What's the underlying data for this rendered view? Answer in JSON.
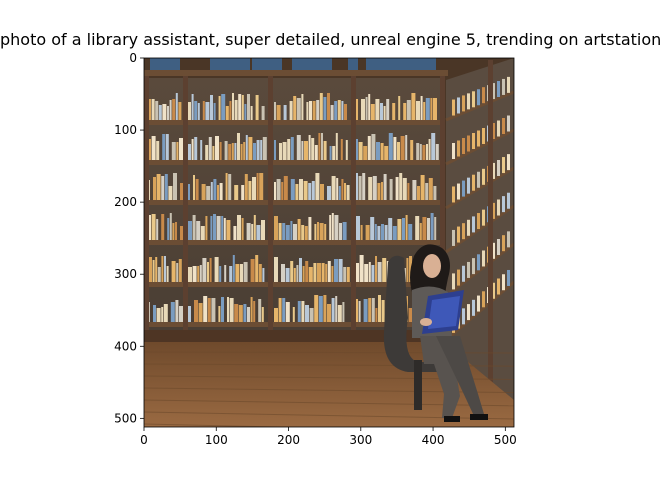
{
  "title": "photo of a library assistant,  super detailed, unreal engine 5, trending on artstation",
  "image": {
    "subject": "library-scene",
    "colors": {
      "wood_dark": "#4a3626",
      "wood_mid": "#6b4d34",
      "floor": "#8a5e3a",
      "shelf_back": "#5d554c",
      "window": "#3f5f82",
      "chair": "#3d3a38",
      "book_blue": "#2d3f8f"
    }
  },
  "axes": {
    "x_ticks": [
      "0",
      "100",
      "200",
      "300",
      "400",
      "500"
    ],
    "y_ticks": [
      "0",
      "100",
      "200",
      "300",
      "400",
      "500"
    ]
  },
  "chart_data": {
    "type": "image",
    "title": "photo of a library assistant,  super detailed, unreal engine 5, trending on artstation",
    "xlim": [
      0,
      512
    ],
    "ylim": [
      512,
      0
    ],
    "x_ticks": [
      0,
      100,
      200,
      300,
      400,
      500
    ],
    "y_ticks": [
      0,
      100,
      200,
      300,
      400,
      500
    ]
  }
}
